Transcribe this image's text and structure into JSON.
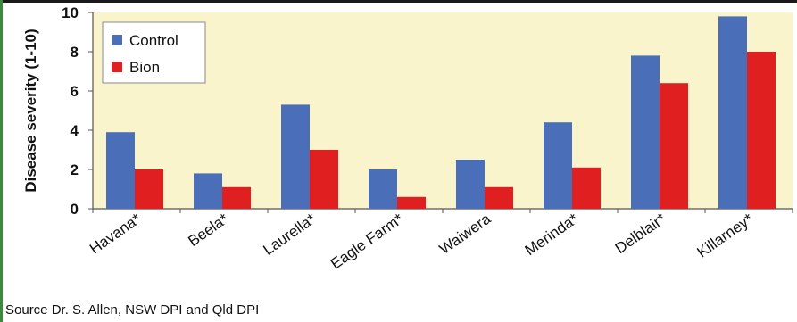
{
  "source_note": "Source Dr. S. Allen, NSW DPI and Qld DPI",
  "colors": {
    "plot_background": "#faf4cc",
    "control": "#4a6fb8",
    "bion": "#e02020",
    "frame_accent": "#3c8a3c"
  },
  "chart_data": {
    "type": "bar",
    "title": "",
    "xlabel": "",
    "ylabel": "Disease severity (1-10)",
    "ylim": [
      0,
      10
    ],
    "yticks": [
      0,
      2,
      4,
      6,
      8,
      10
    ],
    "grid": false,
    "legend_position": "top-left",
    "categories": [
      "Havana*",
      "Beela*",
      "Laurella*",
      "Eagle Farm*",
      "Waiwera",
      "Merinda*",
      "Delblair*",
      "Killarney*"
    ],
    "series": [
      {
        "name": "Control",
        "color": "#4a6fb8",
        "values": [
          3.9,
          1.8,
          5.3,
          2.0,
          2.5,
          4.4,
          7.8,
          9.8
        ]
      },
      {
        "name": "Bion",
        "color": "#e02020",
        "values": [
          2.0,
          1.1,
          3.0,
          0.6,
          1.1,
          2.1,
          6.4,
          8.0
        ]
      }
    ]
  }
}
